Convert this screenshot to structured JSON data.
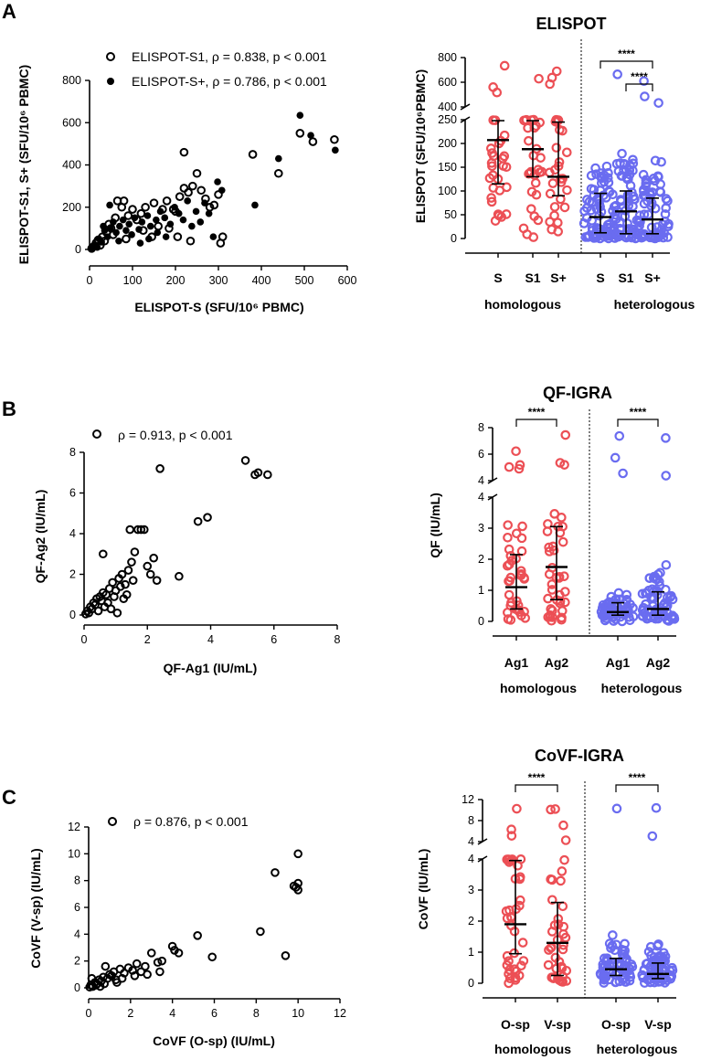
{
  "panels": {
    "A": "A",
    "B": "B",
    "C": "C"
  },
  "chart_data": [
    {
      "type": "scatter",
      "id": "A-scatter",
      "title": "",
      "xlabel": "ELISPOT-S (SFU/10⁶ PBMC)",
      "ylabel": "ELISPOT-S1, S+ (SFU/10⁶ PBMC)",
      "xlim": [
        0,
        600
      ],
      "ylim": [
        0,
        800
      ],
      "xticks": [
        "0",
        "100",
        "200",
        "300",
        "400",
        "500",
        "600"
      ],
      "yticks": [
        "0",
        "200",
        "400",
        "600",
        "800"
      ],
      "legend": [
        {
          "label": "ELISPOT-S1, ρ = 0.838, p < 0.001",
          "marker": "open"
        },
        {
          "label": "ELISPOT-S+, ρ = 0.786, p < 0.001",
          "marker": "filled"
        }
      ],
      "series": [
        {
          "name": "ELISPOT-S1",
          "marker": "open",
          "points": [
            [
              5,
              5
            ],
            [
              10,
              15
            ],
            [
              15,
              30
            ],
            [
              20,
              45
            ],
            [
              25,
              20
            ],
            [
              30,
              60
            ],
            [
              40,
              80
            ],
            [
              45,
              120
            ],
            [
              50,
              100
            ],
            [
              60,
              150
            ],
            [
              65,
              230
            ],
            [
              75,
              200
            ],
            [
              80,
              230
            ],
            [
              90,
              160
            ],
            [
              100,
              190
            ],
            [
              110,
              140
            ],
            [
              120,
              170
            ],
            [
              130,
              200
            ],
            [
              150,
              220
            ],
            [
              160,
              110
            ],
            [
              170,
              190
            ],
            [
              180,
              230
            ],
            [
              195,
              190
            ],
            [
              200,
              180
            ],
            [
              210,
              250
            ],
            [
              220,
              290
            ],
            [
              230,
              270
            ],
            [
              240,
              300
            ],
            [
              250,
              360
            ],
            [
              260,
              280
            ],
            [
              270,
              240
            ],
            [
              280,
              200
            ],
            [
              290,
              210
            ],
            [
              300,
              260
            ],
            [
              310,
              60
            ],
            [
              305,
              30
            ],
            [
              220,
              460
            ],
            [
              380,
              450
            ],
            [
              440,
              360
            ],
            [
              490,
              550
            ],
            [
              520,
              510
            ],
            [
              570,
              520
            ],
            [
              35,
              40
            ],
            [
              55,
              70
            ],
            [
              85,
              50
            ],
            [
              125,
              90
            ],
            [
              145,
              60
            ],
            [
              185,
              100
            ],
            [
              205,
              60
            ],
            [
              235,
              40
            ]
          ]
        },
        {
          "name": "ELISPOT-S+",
          "marker": "filled",
          "points": [
            [
              5,
              8
            ],
            [
              12,
              20
            ],
            [
              18,
              10
            ],
            [
              22,
              50
            ],
            [
              28,
              35
            ],
            [
              35,
              90
            ],
            [
              42,
              60
            ],
            [
              48,
              100
            ],
            [
              55,
              130
            ],
            [
              62,
              80
            ],
            [
              70,
              110
            ],
            [
              78,
              140
            ],
            [
              85,
              90
            ],
            [
              92,
              120
            ],
            [
              105,
              150
            ],
            [
              115,
              95
            ],
            [
              122,
              130
            ],
            [
              135,
              160
            ],
            [
              142,
              110
            ],
            [
              155,
              140
            ],
            [
              165,
              180
            ],
            [
              175,
              150
            ],
            [
              188,
              120
            ],
            [
              198,
              200
            ],
            [
              208,
              170
            ],
            [
              218,
              140
            ],
            [
              228,
              230
            ],
            [
              238,
              110
            ],
            [
              248,
              180
            ],
            [
              258,
              130
            ],
            [
              268,
              220
            ],
            [
              278,
              170
            ],
            [
              288,
              60
            ],
            [
              298,
              320
            ],
            [
              308,
              280
            ],
            [
              385,
              210
            ],
            [
              440,
              430
            ],
            [
              490,
              635
            ],
            [
              515,
              540
            ],
            [
              572,
              470
            ],
            [
              32,
              110
            ],
            [
              47,
              210
            ],
            [
              68,
              40
            ],
            [
              98,
              70
            ],
            [
              118,
              30
            ],
            [
              138,
              50
            ],
            [
              158,
              80
            ],
            [
              178,
              60
            ]
          ]
        }
      ]
    },
    {
      "type": "scatter_dot",
      "id": "A-elispot",
      "title": "ELISPOT",
      "ylabel": "ELISPOT (SFU/10⁶PBMC)",
      "yticks_low": [
        "0",
        "50",
        "100",
        "150",
        "200",
        "250"
      ],
      "yticks_high": [
        "400",
        "600",
        "800"
      ],
      "categories": [
        "S",
        "S1",
        "S+",
        "S",
        "S1",
        "S+"
      ],
      "groups": [
        "homologous",
        "heterologous"
      ],
      "medians": [
        207,
        188,
        130,
        45,
        57,
        40
      ],
      "iqr": [
        [
          115,
          248
        ],
        [
          130,
          248
        ],
        [
          90,
          245
        ],
        [
          12,
          95
        ],
        [
          10,
          100
        ],
        [
          10,
          85
        ]
      ],
      "significance": [
        {
          "from": 3,
          "to": 5,
          "label": "****"
        },
        {
          "from": 4,
          "to": 5,
          "label": "****"
        }
      ]
    },
    {
      "type": "scatter",
      "id": "B-scatter",
      "xlabel": "QF-Ag1 (IU/mL)",
      "ylabel": "QF-Ag2 (IU/mL)",
      "xlim": [
        0,
        8
      ],
      "ylim": [
        0,
        8
      ],
      "xticks": [
        "0",
        "2",
        "4",
        "6",
        "8"
      ],
      "yticks": [
        "0",
        "2",
        "4",
        "6",
        "8"
      ],
      "legend": [
        {
          "label": "ρ = 0.913, p < 0.001",
          "marker": "open"
        }
      ],
      "series": [
        {
          "name": "QF",
          "marker": "open",
          "points": [
            [
              0.05,
              0.05
            ],
            [
              0.1,
              0.2
            ],
            [
              0.15,
              0.1
            ],
            [
              0.2,
              0.4
            ],
            [
              0.25,
              0.3
            ],
            [
              0.3,
              0.6
            ],
            [
              0.35,
              0.5
            ],
            [
              0.4,
              0.8
            ],
            [
              0.5,
              0.9
            ],
            [
              0.55,
              0.7
            ],
            [
              0.6,
              1.1
            ],
            [
              0.7,
              1.0
            ],
            [
              0.8,
              1.3
            ],
            [
              0.9,
              1.6
            ],
            [
              1.0,
              1.2
            ],
            [
              1.1,
              1.8
            ],
            [
              1.2,
              2.0
            ],
            [
              1.3,
              1.5
            ],
            [
              1.4,
              2.2
            ],
            [
              1.5,
              2.6
            ],
            [
              1.6,
              3.1
            ],
            [
              1.7,
              4.2
            ],
            [
              1.8,
              4.2
            ],
            [
              1.9,
              4.2
            ],
            [
              2.0,
              2.4
            ],
            [
              2.1,
              2.0
            ],
            [
              2.2,
              2.8
            ],
            [
              2.3,
              1.7
            ],
            [
              2.4,
              7.2
            ],
            [
              3.0,
              1.9
            ],
            [
              3.6,
              4.6
            ],
            [
              3.9,
              4.8
            ],
            [
              5.1,
              7.6
            ],
            [
              5.4,
              6.9
            ],
            [
              5.5,
              7.0
            ],
            [
              5.8,
              6.9
            ],
            [
              0.45,
              0.2
            ],
            [
              0.65,
              0.4
            ],
            [
              0.75,
              0.6
            ],
            [
              0.85,
              0.3
            ],
            [
              1.05,
              0.1
            ],
            [
              1.25,
              0.8
            ],
            [
              1.35,
              1.0
            ],
            [
              1.45,
              4.2
            ],
            [
              0.6,
              3.0
            ],
            [
              1.15,
              1.4
            ],
            [
              0.95,
              0.9
            ],
            [
              1.55,
              1.7
            ]
          ]
        }
      ]
    },
    {
      "type": "scatter_dot",
      "id": "B-qf",
      "title": "QF-IGRA",
      "ylabel": "QF (IU/mL)",
      "yticks_low": [
        "0",
        "1",
        "2",
        "3",
        "4"
      ],
      "yticks_high": [
        "4",
        "6",
        "8"
      ],
      "categories": [
        "Ag1",
        "Ag2",
        "Ag1",
        "Ag2"
      ],
      "groups": [
        "homologous",
        "heterologous"
      ],
      "medians": [
        1.1,
        1.75,
        0.3,
        0.4
      ],
      "iqr": [
        [
          0.4,
          2.15
        ],
        [
          0.7,
          3.05
        ],
        [
          0.2,
          0.6
        ],
        [
          0.2,
          0.95
        ]
      ],
      "significance": [
        {
          "from": 0,
          "to": 1,
          "label": "****"
        },
        {
          "from": 2,
          "to": 3,
          "label": "****"
        }
      ]
    },
    {
      "type": "scatter",
      "id": "C-scatter",
      "xlabel": "CoVF (O-sp) (IU/mL)",
      "ylabel": "CoVF (V-sp) (IU/mL)",
      "xlim": [
        0,
        12
      ],
      "ylim": [
        0,
        12
      ],
      "xticks": [
        "0",
        "2",
        "4",
        "6",
        "8",
        "10",
        "12"
      ],
      "yticks": [
        "0",
        "2",
        "4",
        "6",
        "8",
        "10",
        "12"
      ],
      "legend": [
        {
          "label": "ρ = 0.876, p < 0.001",
          "marker": "open"
        }
      ],
      "series": [
        {
          "name": "CoVF",
          "marker": "open",
          "points": [
            [
              0.05,
              0.05
            ],
            [
              0.1,
              0.2
            ],
            [
              0.2,
              0.1
            ],
            [
              0.3,
              0.4
            ],
            [
              0.4,
              0.3
            ],
            [
              0.5,
              0.6
            ],
            [
              0.6,
              0.5
            ],
            [
              0.7,
              0.8
            ],
            [
              0.8,
              1.6
            ],
            [
              0.9,
              0.7
            ],
            [
              1.0,
              1.0
            ],
            [
              1.1,
              0.9
            ],
            [
              1.2,
              1.2
            ],
            [
              1.3,
              0.6
            ],
            [
              1.5,
              1.4
            ],
            [
              1.7,
              1.1
            ],
            [
              1.9,
              1.5
            ],
            [
              2.1,
              1.3
            ],
            [
              2.3,
              1.8
            ],
            [
              2.5,
              1.2
            ],
            [
              2.7,
              1.6
            ],
            [
              3.0,
              2.6
            ],
            [
              3.3,
              1.9
            ],
            [
              3.5,
              2.0
            ],
            [
              4.0,
              3.1
            ],
            [
              4.3,
              2.6
            ],
            [
              5.2,
              3.9
            ],
            [
              5.9,
              2.3
            ],
            [
              8.2,
              4.2
            ],
            [
              8.9,
              8.6
            ],
            [
              9.4,
              2.4
            ],
            [
              9.8,
              7.6
            ],
            [
              10.0,
              7.8
            ],
            [
              10.0,
              7.3
            ],
            [
              10.0,
              10.0
            ],
            [
              9.9,
              7.5
            ],
            [
              0.15,
              0.7
            ],
            [
              0.35,
              0.2
            ],
            [
              0.55,
              0.1
            ],
            [
              0.75,
              0.3
            ],
            [
              1.35,
              0.4
            ],
            [
              1.6,
              0.7
            ],
            [
              2.2,
              0.9
            ],
            [
              2.8,
              1.0
            ],
            [
              3.4,
              1.2
            ],
            [
              4.1,
              2.8
            ]
          ]
        }
      ]
    },
    {
      "type": "scatter_dot",
      "id": "C-covf",
      "title": "CoVF-IGRA",
      "ylabel": "CoVF (IU/mL)",
      "yticks_low": [
        "0",
        "1",
        "2",
        "3",
        "4"
      ],
      "yticks_high": [
        "4",
        "8",
        "12"
      ],
      "categories": [
        "O-sp",
        "V-sp",
        "O-sp",
        "V-sp"
      ],
      "groups": [
        "homologous",
        "heterologous"
      ],
      "medians": [
        1.9,
        1.3,
        0.45,
        0.3
      ],
      "iqr": [
        [
          0.95,
          3.95
        ],
        [
          0.25,
          2.6
        ],
        [
          0.25,
          0.8
        ],
        [
          0.15,
          0.65
        ]
      ],
      "significance": [
        {
          "from": 0,
          "to": 1,
          "label": "****"
        },
        {
          "from": 2,
          "to": 3,
          "label": "****"
        }
      ]
    }
  ],
  "colors": {
    "homologous": "#ec4f55",
    "heterologous": "#6a6cf0",
    "ink": "#000000"
  }
}
